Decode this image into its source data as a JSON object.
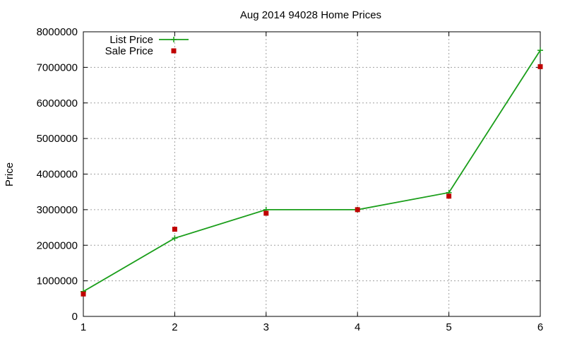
{
  "chart_data": {
    "type": "line",
    "title": "Aug 2014 94028 Home Prices",
    "xlabel": "",
    "ylabel": "Price",
    "xlim": [
      1,
      6
    ],
    "ylim": [
      0,
      8000000
    ],
    "x_ticks": [
      "1",
      "2",
      "3",
      "4",
      "5",
      "6"
    ],
    "y_ticks": [
      "0",
      "1000000",
      "2000000",
      "3000000",
      "4000000",
      "5000000",
      "6000000",
      "7000000",
      "8000000"
    ],
    "grid": true,
    "legend_position": "top-left",
    "series": [
      {
        "name": "List Price",
        "style": "linespoints",
        "marker": "plus",
        "color": "#1a9e1a",
        "x": [
          1,
          2,
          3,
          4,
          5,
          6
        ],
        "values": [
          700000,
          2200000,
          3000000,
          3000000,
          3480000,
          7480000
        ]
      },
      {
        "name": "Sale Price",
        "style": "points",
        "marker": "square",
        "color": "#c00000",
        "x": [
          1,
          2,
          3,
          4,
          5,
          6
        ],
        "values": [
          630000,
          2450000,
          2900000,
          3000000,
          3380000,
          7020000
        ]
      }
    ]
  }
}
